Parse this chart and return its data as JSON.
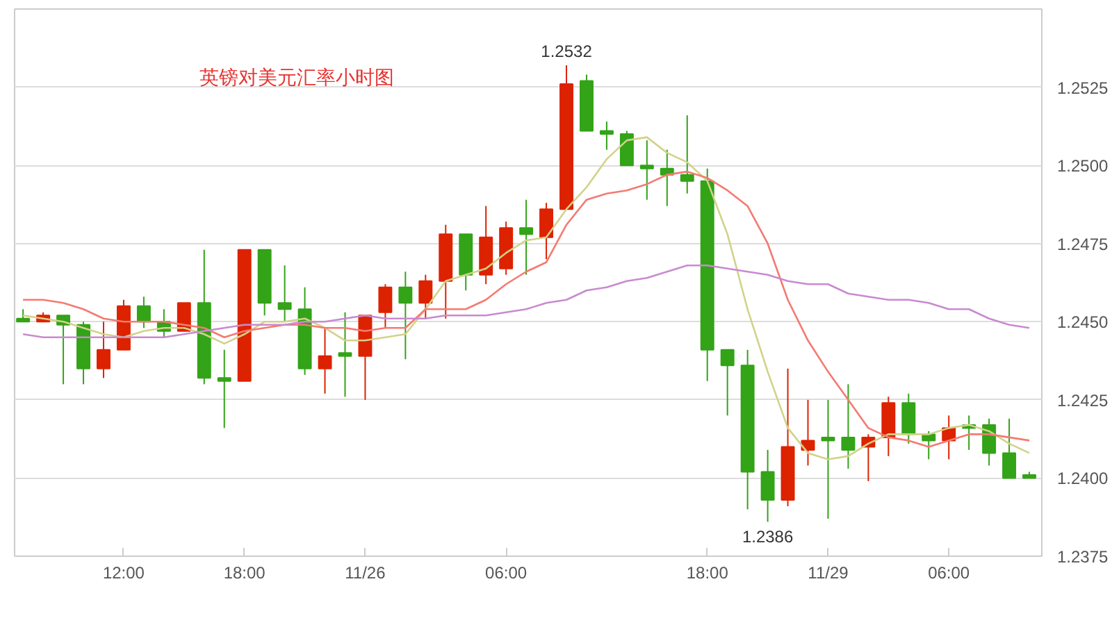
{
  "chart_data": {
    "type": "candlestick",
    "title": "英镑对美元汇率小时图",
    "categories": [
      null,
      null,
      null,
      null,
      null,
      "12:00",
      null,
      null,
      null,
      null,
      null,
      "18:00",
      null,
      null,
      null,
      null,
      null,
      "11/26",
      null,
      null,
      null,
      null,
      null,
      null,
      "06:00",
      null,
      null,
      null,
      null,
      null,
      null,
      null,
      null,
      null,
      "18:00",
      null,
      null,
      null,
      null,
      null,
      "11/29",
      null,
      null,
      null,
      null,
      null,
      "06:00",
      null,
      null,
      null,
      null
    ],
    "ohlc": [
      [
        1.2451,
        1.2454,
        1.245,
        1.245
      ],
      [
        1.245,
        1.2453,
        1.245,
        1.2452
      ],
      [
        1.2452,
        1.2452,
        1.243,
        1.2449
      ],
      [
        1.2449,
        1.245,
        1.243,
        1.2435
      ],
      [
        1.2435,
        1.245,
        1.2432,
        1.2441
      ],
      [
        1.2441,
        1.2457,
        1.2441,
        1.2455
      ],
      [
        1.2455,
        1.2458,
        1.2448,
        1.245
      ],
      [
        1.245,
        1.2454,
        1.2445,
        1.2447
      ],
      [
        1.2447,
        1.2456,
        1.2447,
        1.2456
      ],
      [
        1.2456,
        1.2473,
        1.243,
        1.2432
      ],
      [
        1.2432,
        1.2441,
        1.2416,
        1.2431
      ],
      [
        1.2431,
        1.2473,
        1.2431,
        1.2473
      ],
      [
        1.2473,
        1.2473,
        1.2452,
        1.2456
      ],
      [
        1.2456,
        1.2468,
        1.245,
        1.2454
      ],
      [
        1.2454,
        1.2461,
        1.2433,
        1.2435
      ],
      [
        1.2435,
        1.2448,
        1.2427,
        1.2439
      ],
      [
        1.244,
        1.2453,
        1.2426,
        1.2439
      ],
      [
        1.2439,
        1.2452,
        1.2425,
        1.2452
      ],
      [
        1.2453,
        1.2462,
        1.2448,
        1.2461
      ],
      [
        1.2461,
        1.2466,
        1.2438,
        1.2456
      ],
      [
        1.2456,
        1.2465,
        1.2451,
        1.2463
      ],
      [
        1.2463,
        1.2481,
        1.2451,
        1.2478
      ],
      [
        1.2478,
        1.2478,
        1.246,
        1.2465
      ],
      [
        1.2465,
        1.2487,
        1.2462,
        1.2477
      ],
      [
        1.2467,
        1.2482,
        1.2465,
        1.248
      ],
      [
        1.248,
        1.2489,
        1.2465,
        1.2478
      ],
      [
        1.2477,
        1.2488,
        1.247,
        1.2486
      ],
      [
        1.2486,
        1.2532,
        1.2486,
        1.2526
      ],
      [
        1.2527,
        1.2529,
        1.2511,
        1.2511
      ],
      [
        1.2511,
        1.2514,
        1.2505,
        1.251
      ],
      [
        1.251,
        1.2511,
        1.25,
        1.25
      ],
      [
        1.25,
        1.2508,
        1.2489,
        1.2499
      ],
      [
        1.2499,
        1.2505,
        1.2487,
        1.2497
      ],
      [
        1.2497,
        1.2516,
        1.2491,
        1.2495
      ],
      [
        1.2495,
        1.2499,
        1.2431,
        1.2441
      ],
      [
        1.2441,
        1.2441,
        1.242,
        1.2436
      ],
      [
        1.2436,
        1.2441,
        1.239,
        1.2402
      ],
      [
        1.2402,
        1.2409,
        1.2386,
        1.2393
      ],
      [
        1.2393,
        1.2435,
        1.2391,
        1.241
      ],
      [
        1.2409,
        1.2425,
        1.2404,
        1.2412
      ],
      [
        1.2413,
        1.2425,
        1.2387,
        1.2412
      ],
      [
        1.2413,
        1.243,
        1.2403,
        1.2409
      ],
      [
        1.241,
        1.2414,
        1.2399,
        1.2413
      ],
      [
        1.2413,
        1.2426,
        1.2407,
        1.2424
      ],
      [
        1.2424,
        1.2427,
        1.2411,
        1.2414
      ],
      [
        1.2414,
        1.2415,
        1.2406,
        1.2412
      ],
      [
        1.2412,
        1.242,
        1.2406,
        1.2416
      ],
      [
        1.2417,
        1.242,
        1.2409,
        1.2416
      ],
      [
        1.2417,
        1.2419,
        1.2404,
        1.2408
      ],
      [
        1.2408,
        1.2419,
        1.24,
        1.24
      ],
      [
        1.2401,
        1.2402,
        1.24,
        1.24
      ]
    ],
    "colors": [
      "#33a318",
      "#dd2200",
      "#33a318",
      "#33a318",
      "#dd2200",
      "#dd2200",
      "#33a318",
      "#33a318",
      "#dd2200",
      "#33a318",
      "#33a318",
      "#dd2200",
      "#33a318",
      "#33a318",
      "#33a318",
      "#dd2200",
      "#33a318",
      "#dd2200",
      "#dd2200",
      "#33a318",
      "#dd2200",
      "#dd2200",
      "#33a318",
      "#dd2200",
      "#dd2200",
      "#33a318",
      "#dd2200",
      "#dd2200",
      "#33a318",
      "#33a318",
      "#33a318",
      "#33a318",
      "#33a318",
      "#33a318",
      "#33a318",
      "#33a318",
      "#33a318",
      "#33a318",
      "#dd2200",
      "#dd2200",
      "#33a318",
      "#33a318",
      "#dd2200",
      "#dd2200",
      "#33a318",
      "#33a318",
      "#dd2200",
      "#33a318",
      "#33a318",
      "#33a318",
      "#33a318"
    ],
    "series": [
      {
        "type": "line",
        "color": "#d2d28a",
        "values": [
          1.2452,
          1.2451,
          1.245,
          1.2448,
          1.2446,
          1.2445,
          1.2447,
          1.2448,
          1.2448,
          1.2446,
          1.2443,
          1.2446,
          1.245,
          1.245,
          1.2451,
          1.2448,
          1.2444,
          1.2444,
          1.2445,
          1.2446,
          1.2454,
          1.2463,
          1.2465,
          1.2467,
          1.2472,
          1.2476,
          1.2477,
          1.2486,
          1.2493,
          1.2502,
          1.2508,
          1.2509,
          1.2504,
          1.2501,
          1.2495,
          1.2478,
          1.2454,
          1.2434,
          1.2416,
          1.2408,
          1.2406,
          1.2407,
          1.2411,
          1.2414,
          1.2414,
          1.2414,
          1.2416,
          1.2417,
          1.2415,
          1.2411,
          1.2408
        ]
      },
      {
        "type": "line",
        "color": "#f47a72",
        "values": [
          1.2457,
          1.2457,
          1.2456,
          1.2454,
          1.2451,
          1.245,
          1.245,
          1.245,
          1.2449,
          1.2448,
          1.2445,
          1.2447,
          1.2448,
          1.2449,
          1.2449,
          1.2448,
          1.2448,
          1.2447,
          1.2448,
          1.2448,
          1.2454,
          1.2454,
          1.2454,
          1.2457,
          1.2462,
          1.2466,
          1.2469,
          1.2481,
          1.2489,
          1.2491,
          1.2492,
          1.2494,
          1.2497,
          1.2498,
          1.2496,
          1.2492,
          1.2487,
          1.2475,
          1.2457,
          1.2444,
          1.2434,
          1.2425,
          1.2416,
          1.2413,
          1.2412,
          1.241,
          1.2412,
          1.2414,
          1.2414,
          1.2413,
          1.2412
        ]
      },
      {
        "type": "line",
        "color": "#c98ad0",
        "values": [
          1.2446,
          1.2445,
          1.2445,
          1.2445,
          1.2445,
          1.2445,
          1.2445,
          1.2445,
          1.2446,
          1.2447,
          1.2448,
          1.2449,
          1.2449,
          1.2449,
          1.245,
          1.245,
          1.2451,
          1.2452,
          1.2451,
          1.2451,
          1.2451,
          1.2452,
          1.2452,
          1.2452,
          1.2453,
          1.2454,
          1.2456,
          1.2457,
          1.246,
          1.2461,
          1.2463,
          1.2464,
          1.2466,
          1.2468,
          1.2468,
          1.2467,
          1.2466,
          1.2465,
          1.2463,
          1.2462,
          1.2462,
          1.2459,
          1.2458,
          1.2457,
          1.2457,
          1.2456,
          1.2454,
          1.2454,
          1.2451,
          1.2449,
          1.2448
        ]
      }
    ],
    "ylim": [
      1.2375,
      1.255
    ],
    "yticks": [
      {
        "value": 1.2375,
        "label": "1.2375"
      },
      {
        "value": 1.24,
        "label": "1.2400"
      },
      {
        "value": 1.2425,
        "label": "1.2425"
      },
      {
        "value": 1.245,
        "label": "1.2450"
      },
      {
        "value": 1.2475,
        "label": "1.2475"
      },
      {
        "value": 1.25,
        "label": "1.2500"
      },
      {
        "value": 1.2525,
        "label": "1.2525"
      }
    ],
    "annotations": [
      {
        "text": "1.2532",
        "y": 1.2532
      },
      {
        "text": "1.2386",
        "y": 1.2386
      }
    ],
    "grid": "y"
  }
}
